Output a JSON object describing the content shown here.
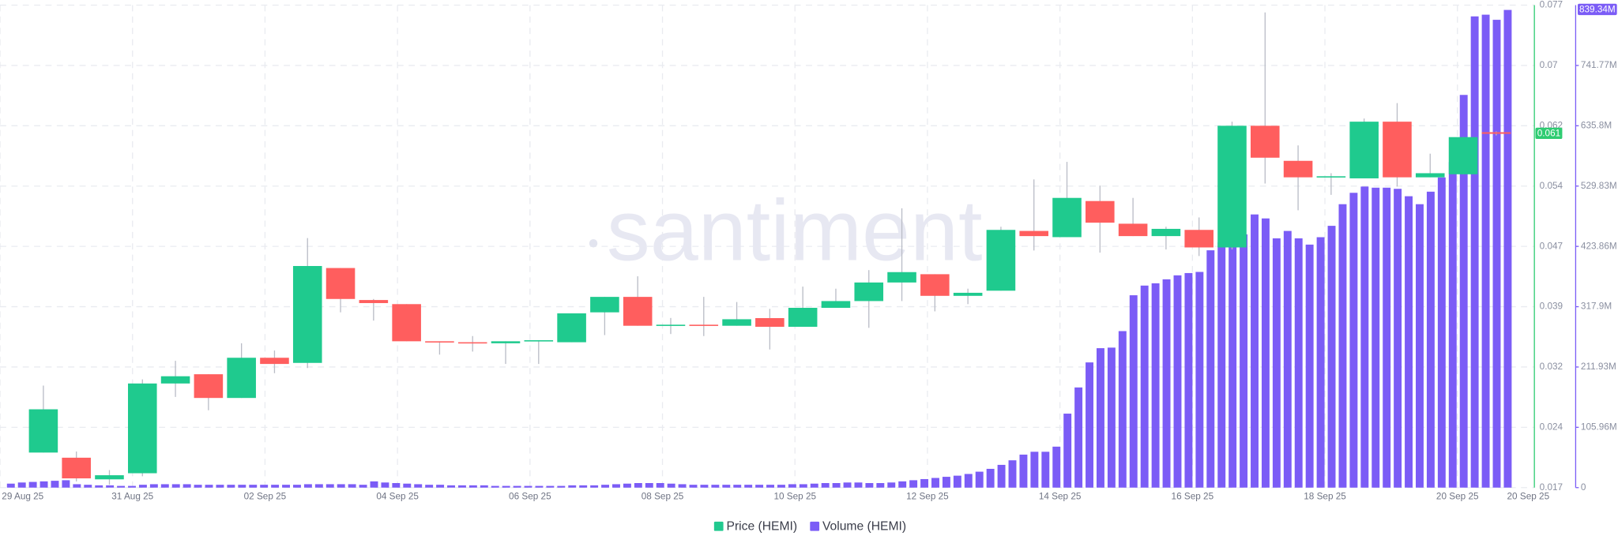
{
  "chart_data": {
    "type": "candlestick",
    "watermark": "santiment",
    "xticks": [
      "29 Aug 25",
      "31 Aug 25",
      "02 Sep 25",
      "04 Sep 25",
      "06 Sep 25",
      "08 Sep 25",
      "10 Sep 25",
      "12 Sep 25",
      "14 Sep 25",
      "16 Sep 25",
      "18 Sep 25",
      "20 Sep 25",
      "20 Sep 25"
    ],
    "ylim": [
      0.017,
      0.077
    ],
    "yticks": [
      0.017,
      {
        "value": 0.0245,
        "label": "0.024"
      },
      0.032,
      {
        "value": 0.0395,
        "label": "0.039"
      },
      0.047,
      {
        "value": 0.0545,
        "label": "0.054"
      },
      0.062,
      {
        "value": 0.0695,
        "label": "0.07"
      },
      0.077
    ],
    "y2lim": [
      0,
      847.73
    ],
    "y2ticks": [
      0,
      {
        "value": 105.96,
        "label": "105.96M"
      },
      {
        "value": 211.93,
        "label": "211.93M"
      },
      {
        "value": 317.9,
        "label": "317.9M"
      },
      {
        "value": 423.86,
        "label": "423.86M"
      },
      {
        "value": 529.83,
        "label": "529.83M"
      },
      {
        "value": 635.8,
        "label": "635.8M"
      },
      {
        "value": 741.77,
        "label": "741.77M"
      }
    ],
    "grid": true,
    "series": [
      {
        "name": "Price (HEMI)",
        "type": "candlestick",
        "color": "#22c98f",
        "up_color": "#1fca8e",
        "down_color": "#ff5e5e",
        "axis_color": "#2ecc71",
        "open": [
          0.02136,
          0.02072,
          0.01803,
          0.01879,
          0.02995,
          0.0311,
          0.02815,
          0.03315,
          0.03251,
          0.04431,
          0.04033,
          0.03982,
          0.0352,
          0.03508,
          0.03495,
          0.0352,
          0.03508,
          0.0388,
          0.04072,
          0.03713,
          0.03726,
          0.03713,
          0.03808,
          0.037,
          0.03936,
          0.0402,
          0.04251,
          0.04354,
          0.04085,
          0.04149,
          0.04892,
          0.04815,
          0.05264,
          0.04982,
          0.04828,
          0.04905,
          0.04687,
          0.062,
          0.05764,
          0.05559,
          0.05546,
          0.06251,
          0.05559,
          0.05597,
          0.0612
        ],
        "high": [
          0.02969,
          0.02149,
          0.01918,
          0.03046,
          0.03277,
          0.0311,
          0.03495,
          0.03405,
          0.04803,
          0.04431,
          0.04046,
          0.03982,
          0.0352,
          0.03585,
          0.0352,
          0.03533,
          0.03867,
          0.04072,
          0.04328,
          0.0381,
          0.04072,
          0.04008,
          0.03923,
          0.042,
          0.04174,
          0.04405,
          0.05174,
          0.04354,
          0.04174,
          0.04944,
          0.05533,
          0.05751,
          0.05456,
          0.05303,
          0.04944,
          0.0506,
          0.06251,
          0.0761,
          0.05956,
          0.0561,
          0.0629,
          0.06482,
          0.05853,
          0.06059,
          0.0613
        ],
        "low": [
          0.02136,
          0.01777,
          0.01738,
          0.01841,
          0.02828,
          0.02662,
          0.02815,
          0.03123,
          0.03187,
          0.0388,
          0.03777,
          0.0352,
          0.03354,
          0.03392,
          0.03238,
          0.03238,
          0.03508,
          0.03597,
          0.03713,
          0.0361,
          0.03585,
          0.03713,
          0.03418,
          0.037,
          0.03936,
          0.03687,
          0.0402,
          0.03892,
          0.03982,
          0.04149,
          0.04649,
          0.04815,
          0.04623,
          0.04828,
          0.04662,
          0.0458,
          0.04662,
          0.05482,
          0.05149,
          0.05341,
          0.05546,
          0.05444,
          0.05559,
          0.05597,
          0.0608
        ],
        "close": [
          0.02674,
          0.01815,
          0.01854,
          0.02995,
          0.03085,
          0.02815,
          0.03315,
          0.03238,
          0.04456,
          0.04046,
          0.03995,
          0.0352,
          0.03508,
          0.03495,
          0.0352,
          0.03533,
          0.03867,
          0.04072,
          0.03713,
          0.03726,
          0.03713,
          0.03794,
          0.037,
          0.03936,
          0.0402,
          0.04251,
          0.0438,
          0.04085,
          0.04123,
          0.04905,
          0.04828,
          0.05303,
          0.04995,
          0.04828,
          0.04918,
          0.04687,
          0.062,
          0.05803,
          0.05559,
          0.05572,
          0.06251,
          0.05559,
          0.0561,
          0.06059,
          0.061
        ]
      },
      {
        "name": "Volume (HEMI)",
        "type": "bar",
        "axis": "y2",
        "color": "#7b5cf6",
        "current_label": "839.34M",
        "values": [
          7,
          9,
          10,
          11,
          12,
          13,
          6,
          5,
          4,
          4,
          3,
          3,
          5,
          6,
          6,
          6,
          6,
          5,
          5,
          5,
          5,
          5,
          5,
          5,
          5,
          5,
          5,
          6,
          6,
          6,
          6,
          6,
          5,
          11,
          9,
          8,
          7,
          6,
          5,
          5,
          4,
          4,
          4,
          4,
          3,
          3,
          3,
          3,
          3,
          3,
          3,
          4,
          4,
          4,
          5,
          6,
          7,
          8,
          8,
          8,
          7,
          6,
          5,
          5,
          5,
          5,
          5,
          5,
          5,
          5,
          5,
          6,
          6,
          7,
          8,
          8,
          9,
          9,
          8,
          8,
          9,
          11,
          13,
          15,
          17,
          19,
          21,
          24,
          28,
          33,
          40,
          48,
          58,
          63,
          63,
          72,
          130,
          176,
          220,
          245,
          246,
          275,
          338,
          355,
          359,
          366,
          373,
          377,
          379,
          417,
          431,
          435,
          445,
          480,
          473,
          438,
          451,
          438,
          427,
          440,
          460,
          498,
          518,
          529,
          527,
          527,
          525,
          512,
          498,
          520,
          545,
          572,
          690,
          828,
          831,
          822,
          839.34
        ]
      }
    ]
  }
}
